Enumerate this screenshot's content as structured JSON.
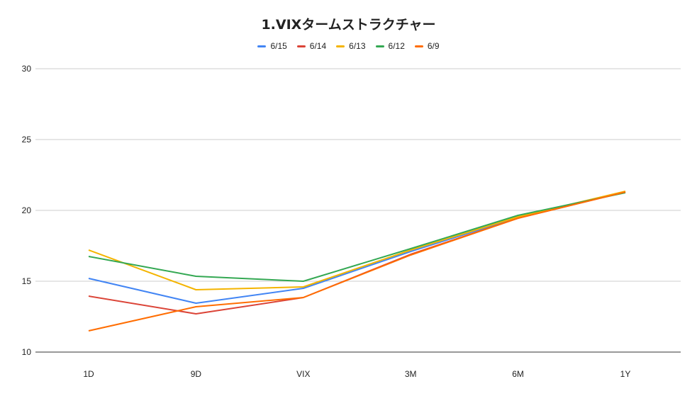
{
  "chart_data": {
    "type": "line",
    "title": "1.VIXタームストラクチャー",
    "categories": [
      "1D",
      "9D",
      "VIX",
      "3M",
      "6M",
      "1Y"
    ],
    "ylim": [
      10,
      30
    ],
    "yticks": [
      "10",
      "15",
      "20",
      "25",
      "30"
    ],
    "grid": true,
    "legend_position": "top",
    "series": [
      {
        "name": "6/15",
        "color": "#4285f4",
        "values": [
          15.2,
          13.45,
          14.5,
          17.1,
          19.5,
          21.3
        ]
      },
      {
        "name": "6/14",
        "color": "#db4437",
        "values": [
          13.95,
          12.7,
          13.85,
          16.9,
          19.45,
          21.3
        ]
      },
      {
        "name": "6/13",
        "color": "#f4b400",
        "values": [
          17.2,
          14.4,
          14.6,
          17.2,
          19.55,
          21.35
        ]
      },
      {
        "name": "6/12",
        "color": "#34a853",
        "values": [
          16.75,
          15.35,
          15.0,
          17.3,
          19.65,
          21.25
        ]
      },
      {
        "name": "6/9",
        "color": "#ff6d01",
        "values": [
          11.5,
          13.2,
          13.85,
          16.85,
          19.45,
          21.3
        ]
      }
    ]
  }
}
